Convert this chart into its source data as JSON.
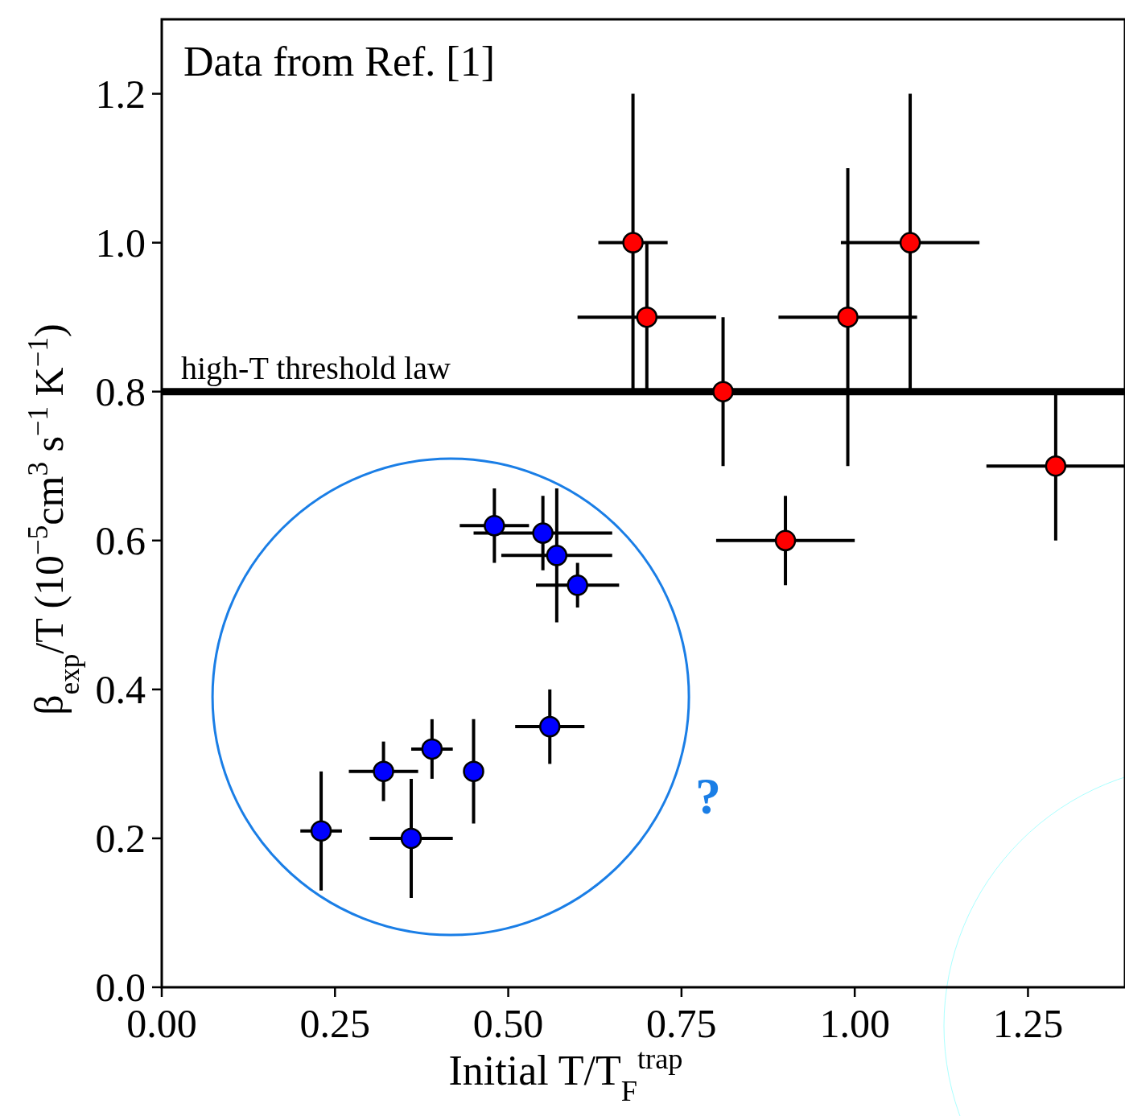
{
  "chart_data": {
    "type": "scatter",
    "xlabel": "Initial T/T$_{F}$$^{trap}$",
    "ylabel": "β$_{exp}$/T (10$^{−5}$cm$^{3}$ s$^{−1}$ K$^{−1}$)",
    "xlim": [
      0,
      1.39
    ],
    "ylim": [
      0,
      1.3
    ],
    "xticks": [
      {
        "value": 0,
        "label": "0.00"
      },
      {
        "value": 0.25,
        "label": "0.25"
      },
      {
        "value": 0.5,
        "label": "0.50"
      },
      {
        "value": 0.75,
        "label": "0.75"
      },
      {
        "value": 1,
        "label": "1.00"
      },
      {
        "value": 1.25,
        "label": "1.25"
      }
    ],
    "yticks": [
      {
        "value": 0,
        "label": "0.0"
      },
      {
        "value": 0.2,
        "label": "0.2"
      },
      {
        "value": 0.4,
        "label": "0.4"
      },
      {
        "value": 0.6,
        "label": "0.6"
      },
      {
        "value": 0.8,
        "label": "0.8"
      },
      {
        "value": 1,
        "label": "1.0"
      },
      {
        "value": 1.2,
        "label": "1.2"
      }
    ],
    "marker": "circle",
    "grid": false,
    "series": [
      {
        "color": "#ff0000",
        "x": [
          0.68,
          0.7,
          0.81,
          0.9,
          0.99,
          1.08,
          1.29
        ],
        "values": [
          1.0,
          0.9,
          0.8,
          0.6,
          0.9,
          1.0,
          0.7
        ],
        "xerrors": [
          0.05,
          0.1,
          null,
          0.1,
          0.1,
          0.1,
          0.1
        ],
        "errors": [
          0.2,
          0.1,
          0.1,
          0.06,
          0.2,
          0.2,
          0.1
        ]
      },
      {
        "color": "#0000ff",
        "x": [
          0.23,
          0.32,
          0.36,
          0.39,
          0.45,
          0.56,
          0.48,
          0.55,
          0.57,
          0.6
        ],
        "values": [
          0.21,
          0.29,
          0.2,
          0.32,
          0.29,
          0.35,
          0.62,
          0.61,
          0.58,
          0.54
        ],
        "xerrors": [
          0.03,
          0.05,
          0.06,
          0.03,
          null,
          0.05,
          0.05,
          0.1,
          0.08,
          0.06
        ],
        "errors": [
          0.08,
          0.04,
          0.08,
          0.04,
          0.07,
          0.05,
          0.05,
          0.05,
          0.09,
          0.03
        ]
      }
    ],
    "ref_lines": [
      {
        "axis": "y",
        "value": 0.8,
        "label": "high-T threshold law",
        "color": "#000000"
      }
    ],
    "annotations": [
      "Data from Ref. [1]",
      "?"
    ]
  }
}
